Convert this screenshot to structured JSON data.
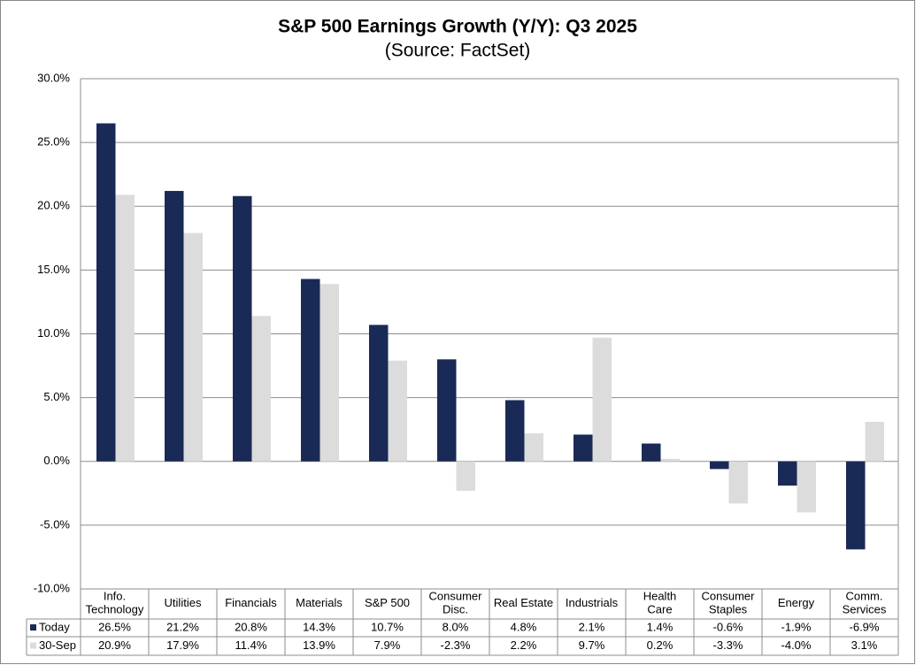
{
  "chart_data": {
    "type": "bar",
    "title": "S&P 500 Earnings Growth (Y/Y): Q3 2025",
    "subtitle": "(Source: FactSet)",
    "categories": [
      "Info.\nTechnology",
      "Utilities",
      "Financials",
      "Materials",
      "S&P 500",
      "Consumer\nDisc.",
      "Real Estate",
      "Industrials",
      "Health\nCare",
      "Consumer\nStaples",
      "Energy",
      "Comm.\nServices"
    ],
    "series": [
      {
        "name": "Today",
        "color": "#1a2a57",
        "values": [
          26.5,
          21.2,
          20.8,
          14.3,
          10.7,
          8.0,
          4.8,
          2.1,
          1.4,
          -0.6,
          -1.9,
          -6.9
        ],
        "value_labels": [
          "26.5%",
          "21.2%",
          "20.8%",
          "14.3%",
          "10.7%",
          "8.0%",
          "4.8%",
          "2.1%",
          "1.4%",
          "-0.6%",
          "-1.9%",
          "-6.9%"
        ]
      },
      {
        "name": "30-Sep",
        "color": "#dcdcdc",
        "values": [
          20.9,
          17.9,
          11.4,
          13.9,
          7.9,
          -2.3,
          2.2,
          9.7,
          0.2,
          -3.3,
          -4.0,
          3.1
        ],
        "value_labels": [
          "20.9%",
          "17.9%",
          "11.4%",
          "13.9%",
          "7.9%",
          "-2.3%",
          "2.2%",
          "9.7%",
          "0.2%",
          "-3.3%",
          "-4.0%",
          "3.1%"
        ]
      }
    ],
    "ylim": [
      -10,
      30
    ],
    "yticks": [
      {
        "value": -10,
        "label": "-10.0%"
      },
      {
        "value": -5,
        "label": "-5.0%"
      },
      {
        "value": 0,
        "label": "0.0%"
      },
      {
        "value": 5,
        "label": "5.0%"
      },
      {
        "value": 10,
        "label": "10.0%"
      },
      {
        "value": 15,
        "label": "15.0%"
      },
      {
        "value": 20,
        "label": "20.0%"
      },
      {
        "value": 25,
        "label": "25.0%"
      },
      {
        "value": 30,
        "label": "30.0%"
      }
    ],
    "grid": true
  }
}
